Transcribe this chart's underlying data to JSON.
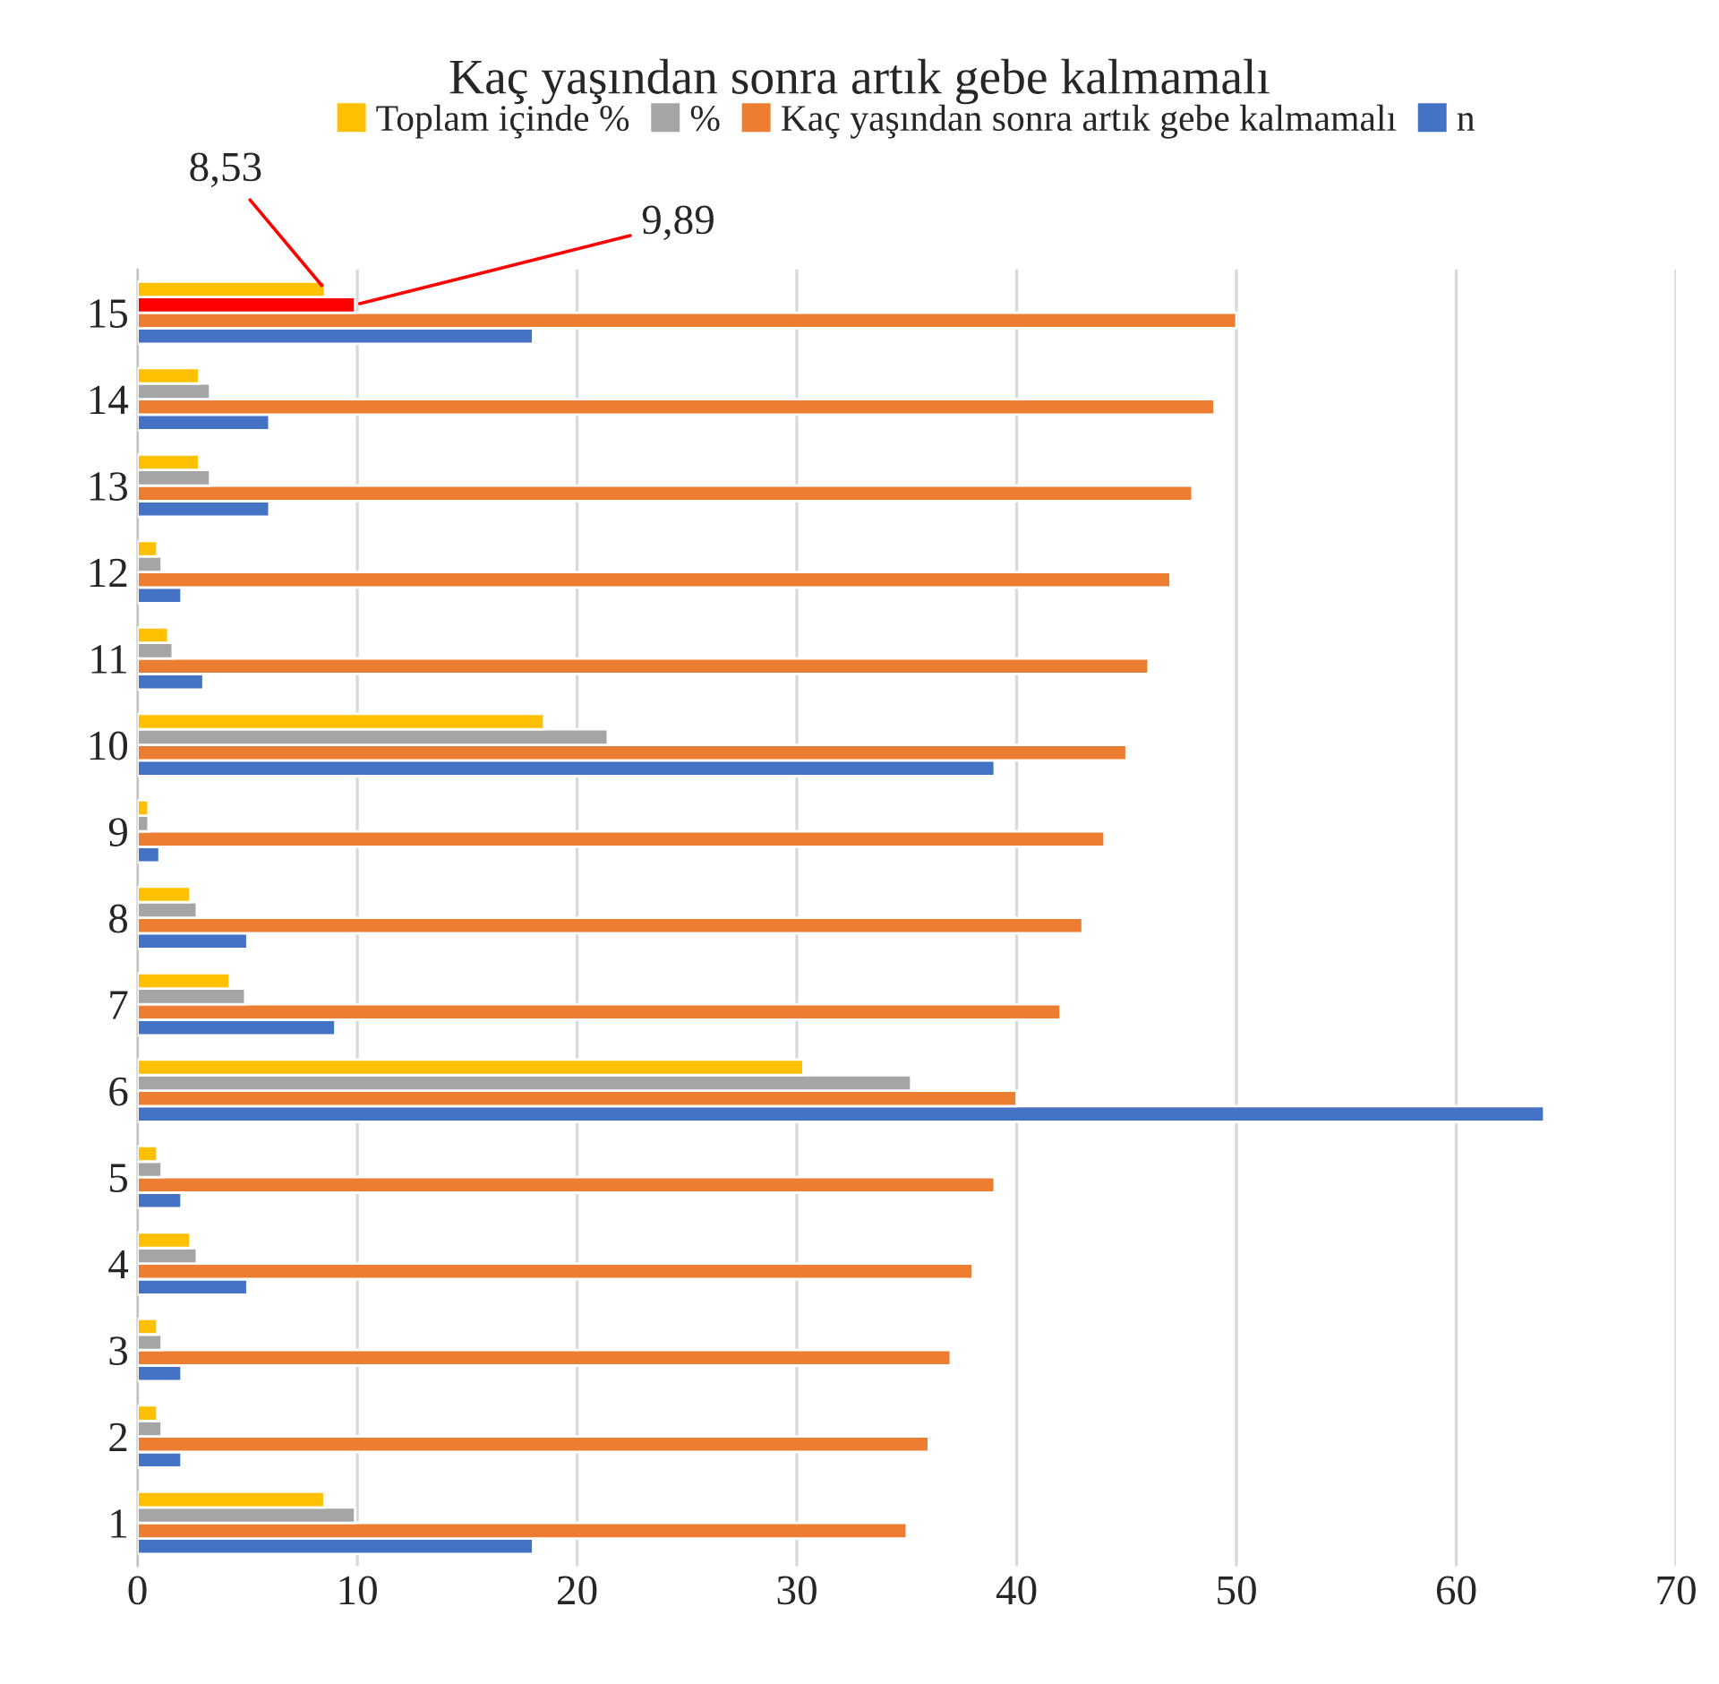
{
  "chart_data": {
    "type": "bar",
    "orientation": "horizontal",
    "title": "Kaç yaşından sonra artık gebe kalmamalı",
    "categories": [
      "15",
      "14",
      "13",
      "12",
      "11",
      "10",
      "9",
      "8",
      "7",
      "6",
      "5",
      "4",
      "3",
      "2",
      "1"
    ],
    "series": [
      {
        "name": "n",
        "color": "#4472c4",
        "values": [
          18,
          6,
          6,
          2,
          3,
          39,
          1,
          5,
          9,
          64,
          2,
          5,
          2,
          2,
          18
        ]
      },
      {
        "name": "Kaç yaşından sonra artık gebe kalmamalı",
        "color": "#ed7d31",
        "values": [
          50,
          49,
          48,
          47,
          46,
          45,
          44,
          43,
          42,
          40,
          39,
          38,
          37,
          36,
          35
        ]
      },
      {
        "name": "%",
        "color": "#a5a5a5",
        "colors": [
          "#ff0000",
          "#a5a5a5",
          "#a5a5a5",
          "#a5a5a5",
          "#a5a5a5",
          "#a5a5a5",
          "#a5a5a5",
          "#a5a5a5",
          "#a5a5a5",
          "#a5a5a5",
          "#a5a5a5",
          "#a5a5a5",
          "#a5a5a5",
          "#a5a5a5",
          "#a5a5a5"
        ],
        "values": [
          9.89,
          3.3,
          3.3,
          1.1,
          1.6,
          21.4,
          0.5,
          2.7,
          4.9,
          35.2,
          1.1,
          2.7,
          1.1,
          1.1,
          9.9
        ],
        "value_labels": [
          "9,89",
          null,
          null,
          null,
          null,
          null,
          null,
          null,
          null,
          null,
          null,
          null,
          null,
          null,
          null
        ]
      },
      {
        "name": "Toplam içinde %",
        "color": "#ffc000",
        "values": [
          8.53,
          2.8,
          2.8,
          0.9,
          1.4,
          18.5,
          0.5,
          2.4,
          4.2,
          30.3,
          0.9,
          2.4,
          0.9,
          0.9,
          8.5
        ],
        "value_labels": [
          "8,53",
          null,
          null,
          null,
          null,
          null,
          null,
          null,
          null,
          null,
          null,
          null,
          null,
          null,
          null
        ]
      }
    ],
    "xlim": [
      0,
      70
    ],
    "xticks": [
      0,
      10,
      20,
      30,
      40,
      50,
      60,
      70
    ],
    "grid": "x",
    "legend": "top"
  }
}
